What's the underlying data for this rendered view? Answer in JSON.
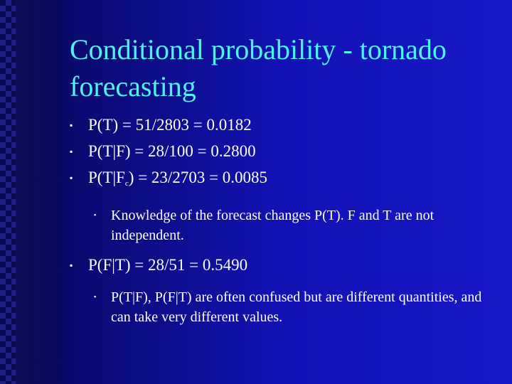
{
  "slide": {
    "title": "Conditional probability - tornado forecasting",
    "bullet_glyph": "▪",
    "items": [
      {
        "level": 1,
        "text": "P(T) = 51/2803 = 0.0182"
      },
      {
        "level": 1,
        "text": "P(T|F) = 28/100 = 0.2800"
      },
      {
        "level": 1,
        "text_a": "P(T|F",
        "subscript": "c",
        "text_b": ") = 23/2703 = 0.0085"
      },
      {
        "level": 2,
        "text": "Knowledge of the forecast changes P(T). F and T are not independent."
      },
      {
        "level": 1,
        "text": "P(F|T) = 28/51 = 0.5490"
      },
      {
        "level": 2,
        "text": "P(T|F), P(F|T) are often confused but are different quantities, and can take very different values."
      }
    ]
  },
  "colors": {
    "title": "#4ff3ee",
    "body_text": "#ffffff",
    "background": "#1414b4"
  }
}
